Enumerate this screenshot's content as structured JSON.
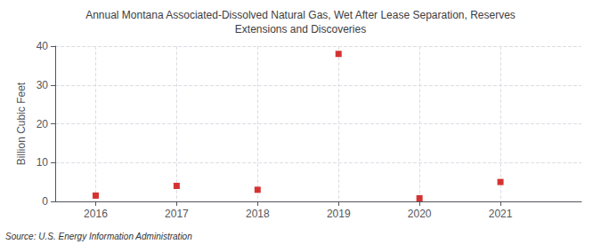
{
  "chart_data": {
    "type": "scatter",
    "title": "Annual Montana Associated-Dissolved Natural Gas, Wet After Lease Separation, Reserves\nExtensions and Discoveries",
    "y_label": "Billion Cubic Feet",
    "source": "Source: U.S. Energy Information Administration",
    "x": [
      2016,
      2017,
      2018,
      2019,
      2020,
      2021
    ],
    "values": [
      1.5,
      4.0,
      3.0,
      38.0,
      0.8,
      5.0
    ],
    "color": "#cc0000",
    "marker": "square",
    "xlim": [
      2015.5,
      2022.0
    ],
    "xticks": [
      2016,
      2017,
      2018,
      2019,
      2020,
      2021
    ],
    "ylim": [
      0,
      40
    ],
    "yticks": [
      0,
      10,
      20,
      30,
      40
    ],
    "grid": true
  }
}
